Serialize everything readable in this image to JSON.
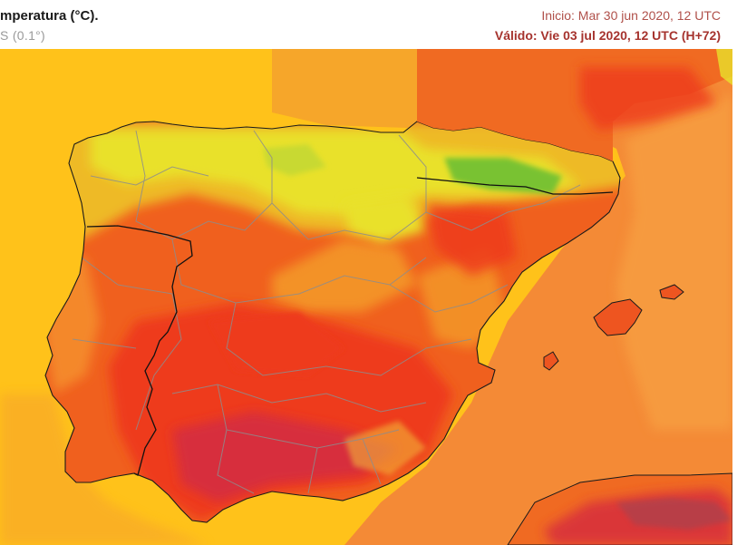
{
  "header": {
    "title": "mperatura (°C).",
    "model": "S (0.1°)",
    "start": "Inicio: Mar 30 jun 2020, 12 UTC",
    "valid": "Válido: Vie 03 jul 2020, 12 UTC (H+72)"
  },
  "colors": {
    "sea_west": "#ffc21a",
    "sea_north": "#f6a62a",
    "sea_med": "#f48a36",
    "land_warm": "#f0601e",
    "land_hot": "#ee3a1a",
    "land_hottest": "#d72d3c",
    "land_cool": "#eeba26",
    "land_mild": "#e9e12c",
    "land_cold": "#79c230",
    "borders": "#8d8d8d",
    "frontiers": "#111111"
  },
  "icons": [
    "map-legend-none"
  ]
}
